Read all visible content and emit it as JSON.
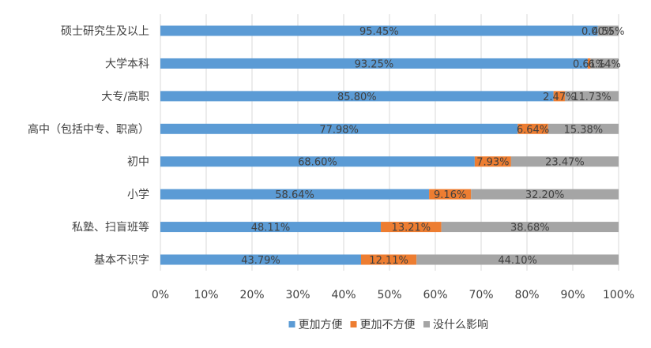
{
  "chart_data": {
    "type": "bar",
    "orientation": "horizontal",
    "stacked": "percent",
    "title": "",
    "xlabel": "",
    "ylabel": "",
    "xlim": [
      0,
      100
    ],
    "x_ticks": [
      "0%",
      "10%",
      "20%",
      "30%",
      "40%",
      "50%",
      "60%",
      "70%",
      "80%",
      "90%",
      "100%"
    ],
    "grid": true,
    "legend_position": "bottom",
    "categories": [
      "硕士研究生及以上",
      "大学本科",
      "大专/高职",
      "高中（包括中专、职高）",
      "初中",
      "小学",
      "私塾、扫盲班等",
      "基本不识字"
    ],
    "series": [
      {
        "name": "更加方便",
        "color": "#5b9bd5",
        "values": [
          95.45,
          93.25,
          85.8,
          77.98,
          68.6,
          58.64,
          48.11,
          43.79
        ],
        "labels": [
          "95.45%",
          "93.25%",
          "85.80%",
          "77.98%",
          "68.60%",
          "58.64%",
          "48.11%",
          "43.79%"
        ]
      },
      {
        "name": "更加不方便",
        "color": "#ed7d31",
        "values": [
          0.0,
          0.61,
          2.47,
          6.64,
          7.93,
          9.16,
          13.21,
          12.11
        ],
        "labels": [
          "0.00%",
          "0.61%",
          "2.47%",
          "6.64%",
          "7.93%",
          "9.16%",
          "13.21%",
          "12.11%"
        ]
      },
      {
        "name": "没什么影响",
        "color": "#a5a5a5",
        "values": [
          4.55,
          6.14,
          11.73,
          15.38,
          23.47,
          32.2,
          38.68,
          44.1
        ],
        "labels": [
          "4.55%",
          "6.14%",
          "11.73%",
          "15.38%",
          "23.47%",
          "32.20%",
          "38.68%",
          "44.10%"
        ]
      }
    ]
  }
}
